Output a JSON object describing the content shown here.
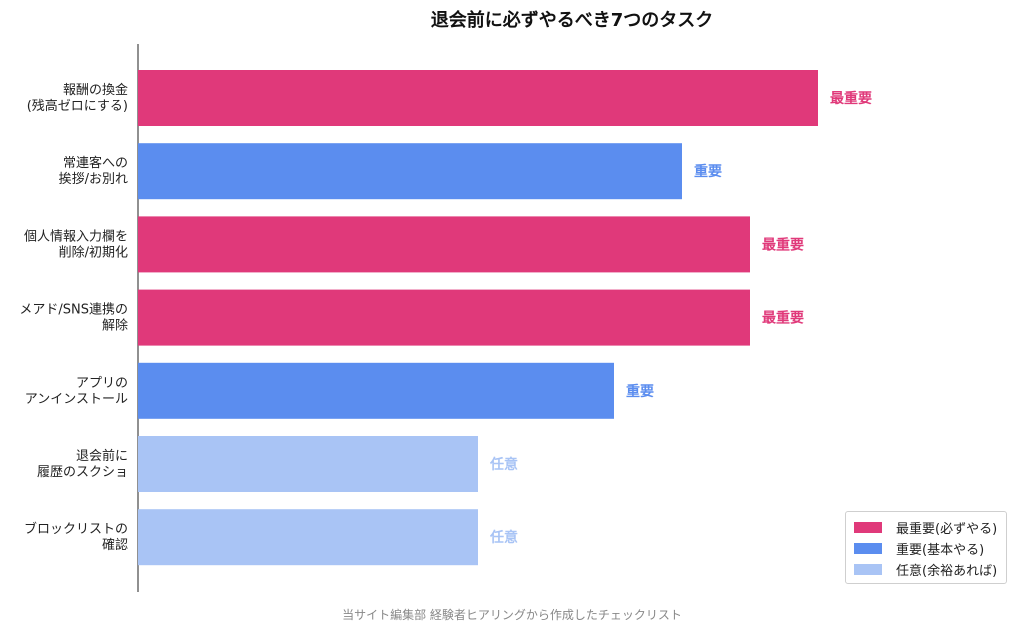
{
  "chart_data": {
    "type": "bar",
    "orientation": "horizontal",
    "title": "退会前に必ずやるべき7つのタスク",
    "categories": [
      "報酬の換金\n(残高ゼロにする)",
      "常連客への\n挨拶/お別れ",
      "個人情報入力欄を\n削除/初期化",
      "メアド/SNS連携の\n解除",
      "アプリの\nアンインストール",
      "退会前に\n履歴のスクショ",
      "ブロックリストの\n確認"
    ],
    "values": [
      10,
      8,
      9,
      9,
      7,
      5,
      5
    ],
    "value_labels": [
      "最重要",
      "重要",
      "最重要",
      "最重要",
      "重要",
      "任意",
      "任意"
    ],
    "bar_colors": [
      "#e0397a",
      "#5b8def",
      "#e0397a",
      "#e0397a",
      "#5b8def",
      "#a9c4f5",
      "#a9c4f5"
    ],
    "xlim": [
      0,
      11
    ],
    "grid": false,
    "x_axis_visible": false,
    "legend_position": "bottom-right",
    "legend": [
      {
        "label": "最重要(必ずやる)",
        "color": "#e0397a"
      },
      {
        "label": "重要(基本やる)",
        "color": "#5b8def"
      },
      {
        "label": "任意(余裕あれば)",
        "color": "#a9c4f5"
      }
    ],
    "footer": "当サイト編集部 経験者ヒアリングから作成したチェックリスト"
  }
}
